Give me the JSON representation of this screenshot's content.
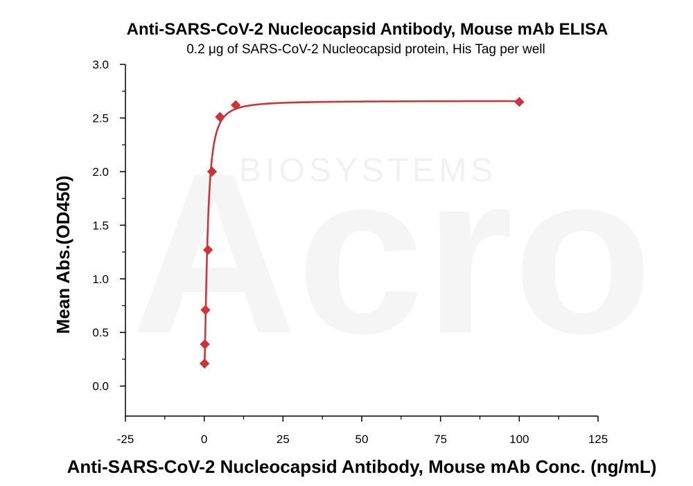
{
  "watermark": {
    "brand": "Acro",
    "sub": "BIOSYSTEMS"
  },
  "chart_data": {
    "type": "scatter",
    "title": "Anti-SARS-CoV-2 Nucleocapsid Antibody, Mouse mAb ELISA",
    "subtitle": "0.2 μg of SARS-CoV-2 Nucleocapsid protein, His Tag per well",
    "xlabel": "Anti-SARS-CoV-2 Nucleocapsid Antibody, Mouse mAb Conc. (ng/mL)",
    "ylabel": "Mean Abs.(OD450)",
    "xlim": [
      -25,
      125
    ],
    "ylim": [
      -0.28,
      3.0
    ],
    "xticks": [
      -25,
      0,
      25,
      50,
      75,
      100,
      125
    ],
    "yticks": [
      0.0,
      0.5,
      1.0,
      1.5,
      2.0,
      2.5,
      3.0
    ],
    "ytick_labels": [
      "0.0",
      "0.5",
      "1.0",
      "1.5",
      "2.0",
      "2.5",
      "3.0"
    ],
    "grid": false,
    "color": "#c8363a",
    "marker": "diamond",
    "fit": "4PL",
    "points": [
      {
        "x": 0.1,
        "y": 0.21
      },
      {
        "x": 0.2,
        "y": 0.39
      },
      {
        "x": 0.39,
        "y": 0.71
      },
      {
        "x": 1.2,
        "y": 1.27
      },
      {
        "x": 2.5,
        "y": 2.0
      },
      {
        "x": 5.0,
        "y": 2.51
      },
      {
        "x": 10.0,
        "y": 2.62
      },
      {
        "x": 100.0,
        "y": 2.65
      }
    ]
  }
}
